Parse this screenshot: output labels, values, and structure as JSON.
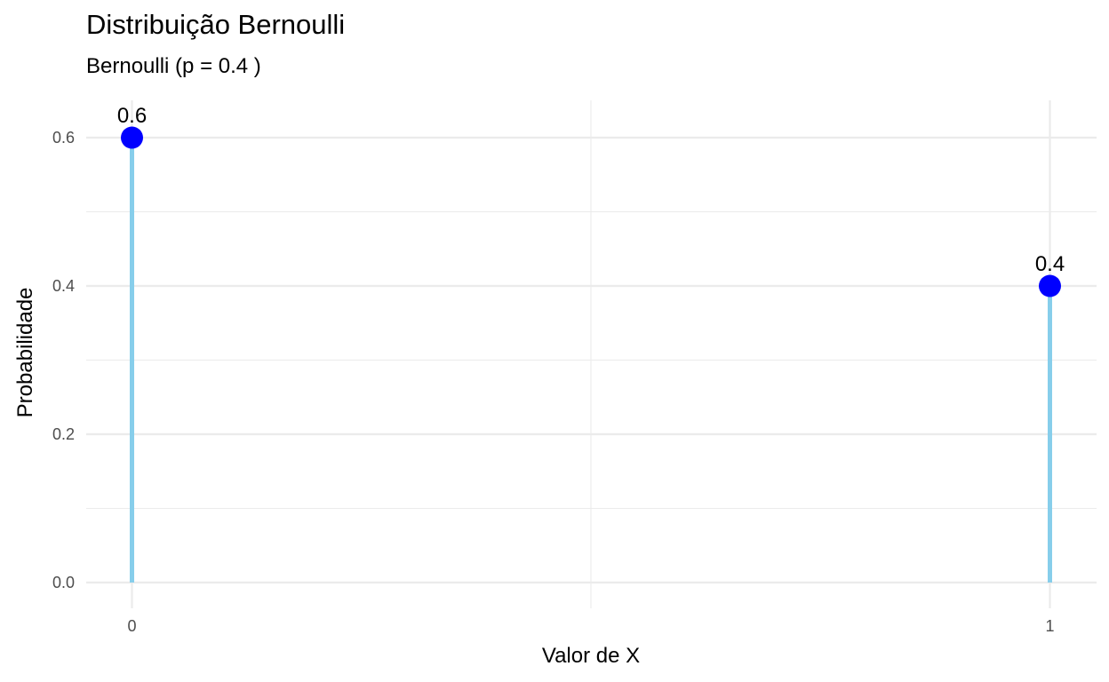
{
  "chart_data": {
    "type": "lollipop",
    "title": "Distribuição Bernoulli",
    "subtitle": "Bernoulli (p = 0.4 )",
    "xlabel": "Valor de X",
    "ylabel": "Probabilidade",
    "x": [
      0,
      1
    ],
    "values": [
      0.6,
      0.4
    ],
    "labels": [
      "0.6",
      "0.4"
    ],
    "xlim": [
      -0.05,
      1.05
    ],
    "ylim": [
      0,
      0.65
    ],
    "x_ticks": [
      0,
      1
    ],
    "x_tick_labels": [
      "0",
      "1"
    ],
    "y_ticks": [
      0,
      0.2,
      0.4,
      0.6
    ],
    "y_tick_labels": [
      "0.0",
      "0.2",
      "0.4",
      "0.6"
    ],
    "grid": true,
    "colors": {
      "stem": "#87ceeb",
      "point": "#0000ff",
      "grid": "#ebebeb"
    }
  }
}
